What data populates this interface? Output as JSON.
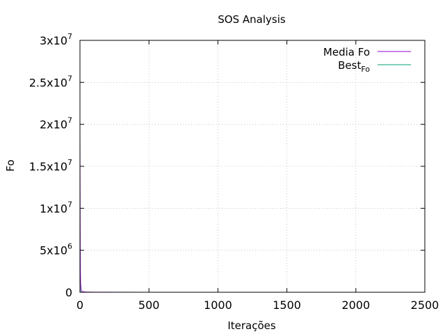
{
  "chart_data": {
    "type": "line",
    "title": "SOS Analysis",
    "xlabel": "Iterações",
    "ylabel": "Fo",
    "xlim": [
      0,
      2500
    ],
    "ylim": [
      0,
      30000000
    ],
    "grid": true,
    "legend_position": "top-right",
    "x_ticks": [
      {
        "value": 0,
        "label": "0"
      },
      {
        "value": 500,
        "label": "500"
      },
      {
        "value": 1000,
        "label": "1000"
      },
      {
        "value": 1500,
        "label": "1500"
      },
      {
        "value": 2000,
        "label": "2000"
      },
      {
        "value": 2500,
        "label": "2500"
      }
    ],
    "y_ticks": [
      {
        "value": 0,
        "mantissa": "0",
        "exponent": ""
      },
      {
        "value": 5000000,
        "mantissa": "5x10",
        "exponent": "6"
      },
      {
        "value": 10000000,
        "mantissa": "1x10",
        "exponent": "7"
      },
      {
        "value": 15000000,
        "mantissa": "1.5x10",
        "exponent": "7"
      },
      {
        "value": 20000000,
        "mantissa": "2x10",
        "exponent": "7"
      },
      {
        "value": 25000000,
        "mantissa": "2.5x10",
        "exponent": "7"
      },
      {
        "value": 30000000,
        "mantissa": "3x10",
        "exponent": "7"
      }
    ],
    "series": [
      {
        "name": "Media Fo",
        "color": "#9400d3",
        "x": [
          0,
          1,
          2,
          3,
          5,
          8,
          12,
          20,
          50,
          100,
          500,
          1000,
          1500,
          2000,
          2400
        ],
        "y": [
          19000000,
          12000000,
          6000000,
          2500000,
          1000000,
          400000,
          150000,
          60000,
          20000,
          8000,
          3000,
          2000,
          1500,
          1200,
          1000
        ]
      },
      {
        "name": "Best",
        "name_subscript": "Fo",
        "color": "#009e73",
        "x": [
          0,
          1,
          2,
          3,
          5,
          8,
          12,
          20,
          50,
          100,
          500,
          1000,
          1500,
          2000,
          2400
        ],
        "y": [
          2000000,
          800000,
          300000,
          120000,
          50000,
          20000,
          8000,
          3000,
          1000,
          500,
          200,
          150,
          120,
          100,
          100
        ]
      }
    ]
  }
}
